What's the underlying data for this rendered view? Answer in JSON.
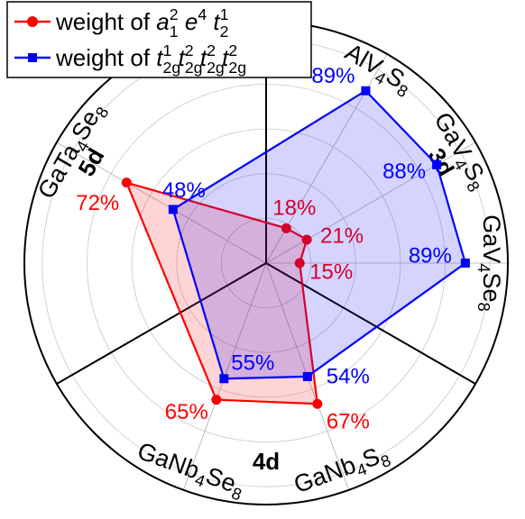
{
  "chart_data": {
    "type": "radar",
    "categories": [
      [
        {
          "text": "AlV"
        },
        {
          "sub": "4"
        },
        {
          "text": "S"
        },
        {
          "sub": "8"
        }
      ],
      [
        {
          "text": "GaV"
        },
        {
          "sub": "4"
        },
        {
          "text": "S"
        },
        {
          "sub": "8"
        }
      ],
      [
        {
          "text": "GaV"
        },
        {
          "sub": "4"
        },
        {
          "text": "Se"
        },
        {
          "sub": "8"
        }
      ],
      [
        {
          "text": "GaNb"
        },
        {
          "sub": "4"
        },
        {
          "text": "S"
        },
        {
          "sub": "8"
        }
      ],
      [
        {
          "text": "GaNb"
        },
        {
          "sub": "4"
        },
        {
          "text": "Se"
        },
        {
          "sub": "8"
        }
      ],
      [
        {
          "text": "GaTa"
        },
        {
          "sub": "4"
        },
        {
          "text": "Se"
        },
        {
          "sub": "8"
        }
      ]
    ],
    "groups": [
      "3d",
      "4d",
      "5d"
    ],
    "rlim": [
      0,
      108
    ],
    "rgrid": [
      20,
      40,
      60,
      80,
      100
    ],
    "series": [
      {
        "name": [
          {
            "text": "weight of "
          },
          {
            "italic": "a"
          },
          {
            "sub": "1"
          },
          {
            "sup": "2"
          },
          {
            "italic": " e"
          },
          {
            "sup": "4"
          },
          {
            "italic": " t"
          },
          {
            "sub": "2"
          },
          {
            "sup": "1"
          }
        ],
        "color": "#ff0000",
        "marker": "circle",
        "values": [
          18,
          21,
          15,
          67,
          65,
          72
        ],
        "value_labels": [
          "18%",
          "21%",
          "15%",
          "67%",
          "65%",
          "72%"
        ]
      },
      {
        "name": [
          {
            "text": "weight of "
          },
          {
            "italic": "t"
          },
          {
            "sub": "2g"
          },
          {
            "sup": "1"
          },
          {
            "italic": " t"
          },
          {
            "sub": "2g"
          },
          {
            "sup": "2"
          },
          {
            "italic": " t"
          },
          {
            "sub": "2g"
          },
          {
            "sup": "2"
          },
          {
            "italic": " t"
          },
          {
            "sub": "2g"
          },
          {
            "sup": "2"
          }
        ],
        "color": "#0000ff",
        "marker": "square",
        "values": [
          89,
          88,
          89,
          54,
          55,
          48
        ],
        "value_labels": [
          "89%",
          "88%",
          "89%",
          "54%",
          "55%",
          "48%"
        ]
      }
    ]
  }
}
